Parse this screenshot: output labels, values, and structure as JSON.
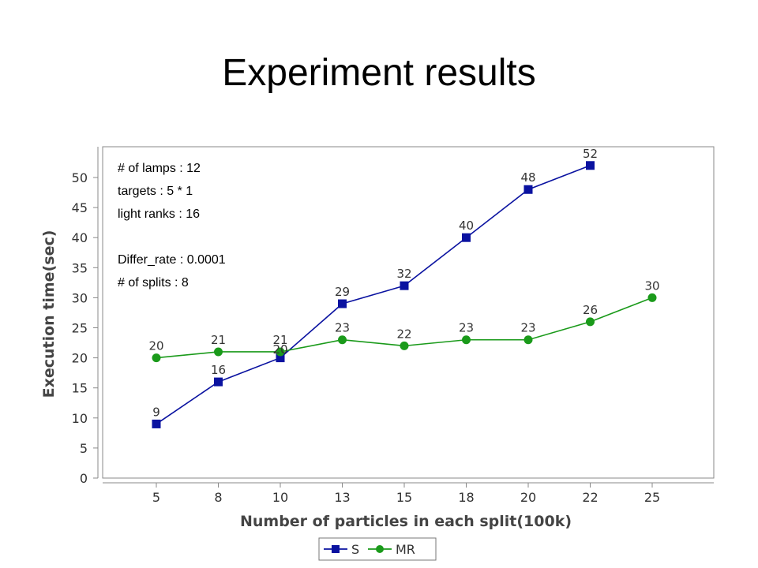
{
  "slide": {
    "title": "Experiment results"
  },
  "chart_data": {
    "type": "line",
    "categories": [
      "5",
      "8",
      "10",
      "13",
      "15",
      "18",
      "20",
      "22",
      "25"
    ],
    "series": [
      {
        "name": "S",
        "values": [
          9,
          16,
          20,
          29,
          32,
          40,
          48,
          52,
          null
        ],
        "labels": [
          "9",
          "16",
          "",
          "29",
          "32",
          "40",
          "48",
          "52",
          ""
        ],
        "color": "#0a12a0",
        "marker": "square"
      },
      {
        "name": "MR",
        "values": [
          20,
          21,
          21,
          23,
          22,
          23,
          23,
          26,
          30
        ],
        "labels": [
          "20",
          "21",
          "21",
          "23",
          "22",
          "23",
          "23",
          "26",
          "30"
        ],
        "color": "#1a9a1a",
        "marker": "circle"
      }
    ],
    "overlap_label": "20",
    "xlabel": "Number of particles in each split(100k)",
    "ylabel": "Execution time(sec)",
    "ylim": [
      0,
      53
    ],
    "yticks": [
      "0",
      "5",
      "10",
      "15",
      "20",
      "25",
      "30",
      "35",
      "40",
      "45",
      "50"
    ],
    "grid": false,
    "legend": "bottom-center",
    "annotations": [
      "# of lamps : 12",
      "targets : 5 * 1",
      "light ranks : 16",
      "",
      "Differ_rate : 0.0001",
      "# of splits : 8"
    ]
  }
}
